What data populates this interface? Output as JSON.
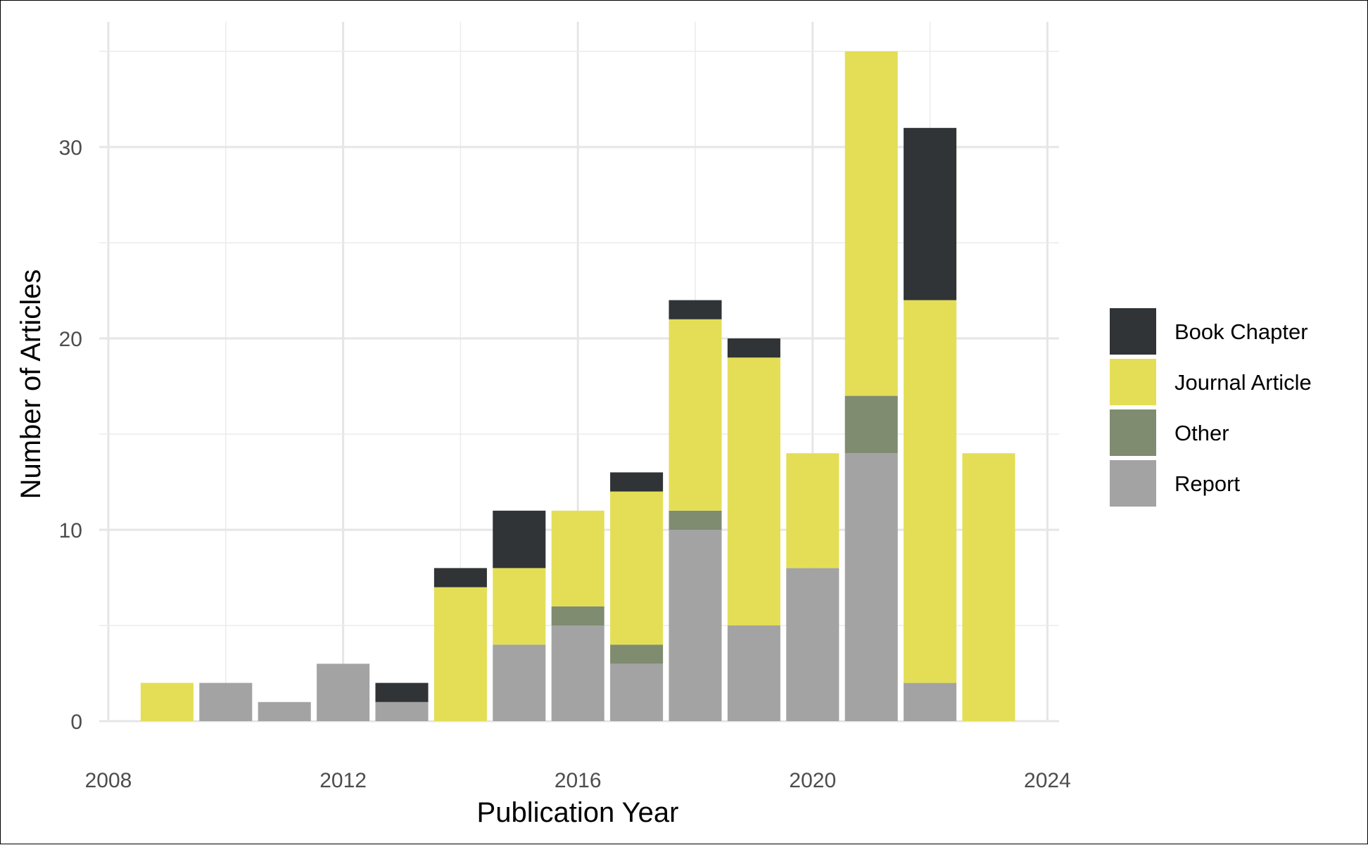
{
  "chart_data": {
    "type": "bar",
    "stacked": true,
    "xlabel": "Publication Year",
    "ylabel": "Number of Articles",
    "xlim": [
      2008,
      2024
    ],
    "ylim": [
      0,
      35
    ],
    "xticks": [
      "2008",
      "2012",
      "2016",
      "2020",
      "2024"
    ],
    "yticks": [
      "0",
      "10",
      "20",
      "30"
    ],
    "grid": true,
    "legend_position": "right",
    "categories": [
      2009,
      2010,
      2011,
      2012,
      2013,
      2014,
      2015,
      2016,
      2017,
      2018,
      2019,
      2020,
      2021,
      2022,
      2023
    ],
    "series": [
      {
        "name": "Report",
        "color": "#a3a3a3",
        "values": [
          0,
          2,
          1,
          3,
          1,
          0,
          4,
          5,
          3,
          10,
          5,
          8,
          14,
          2,
          0
        ]
      },
      {
        "name": "Other",
        "color": "#7f8c6f",
        "values": [
          0,
          0,
          0,
          0,
          0,
          0,
          0,
          1,
          1,
          1,
          0,
          0,
          3,
          0,
          0
        ]
      },
      {
        "name": "Journal Article",
        "color": "#e4de56",
        "values": [
          2,
          0,
          0,
          0,
          0,
          7,
          4,
          5,
          8,
          10,
          14,
          6,
          18,
          20,
          14
        ]
      },
      {
        "name": "Book Chapter",
        "color": "#303436",
        "values": [
          0,
          0,
          0,
          0,
          1,
          1,
          3,
          0,
          1,
          1,
          1,
          0,
          0,
          9,
          0
        ]
      }
    ],
    "legend_order": [
      "Book Chapter",
      "Journal Article",
      "Other",
      "Report"
    ]
  }
}
